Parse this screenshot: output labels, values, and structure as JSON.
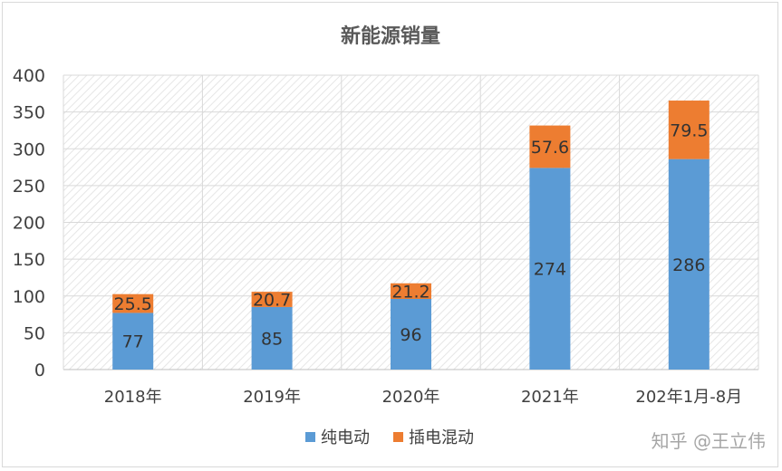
{
  "chart_data": {
    "type": "bar",
    "stacked": true,
    "title": "新能源销量",
    "categories": [
      "2018年",
      "2019年",
      "2020年",
      "2021年",
      "202年1月-8月"
    ],
    "series": [
      {
        "name": "纯电动",
        "color": "#5B9BD5",
        "values": [
          77,
          85,
          96,
          274,
          286
        ]
      },
      {
        "name": "插电混动",
        "color": "#ED7D31",
        "values": [
          25.5,
          20.7,
          21.2,
          57.6,
          79.5
        ]
      }
    ],
    "ylim": [
      0,
      400
    ],
    "yticks": [
      0,
      50,
      100,
      150,
      200,
      250,
      300,
      350,
      400
    ],
    "grid": true,
    "legend_position": "bottom"
  },
  "watermark": "知乎 @王立伟"
}
